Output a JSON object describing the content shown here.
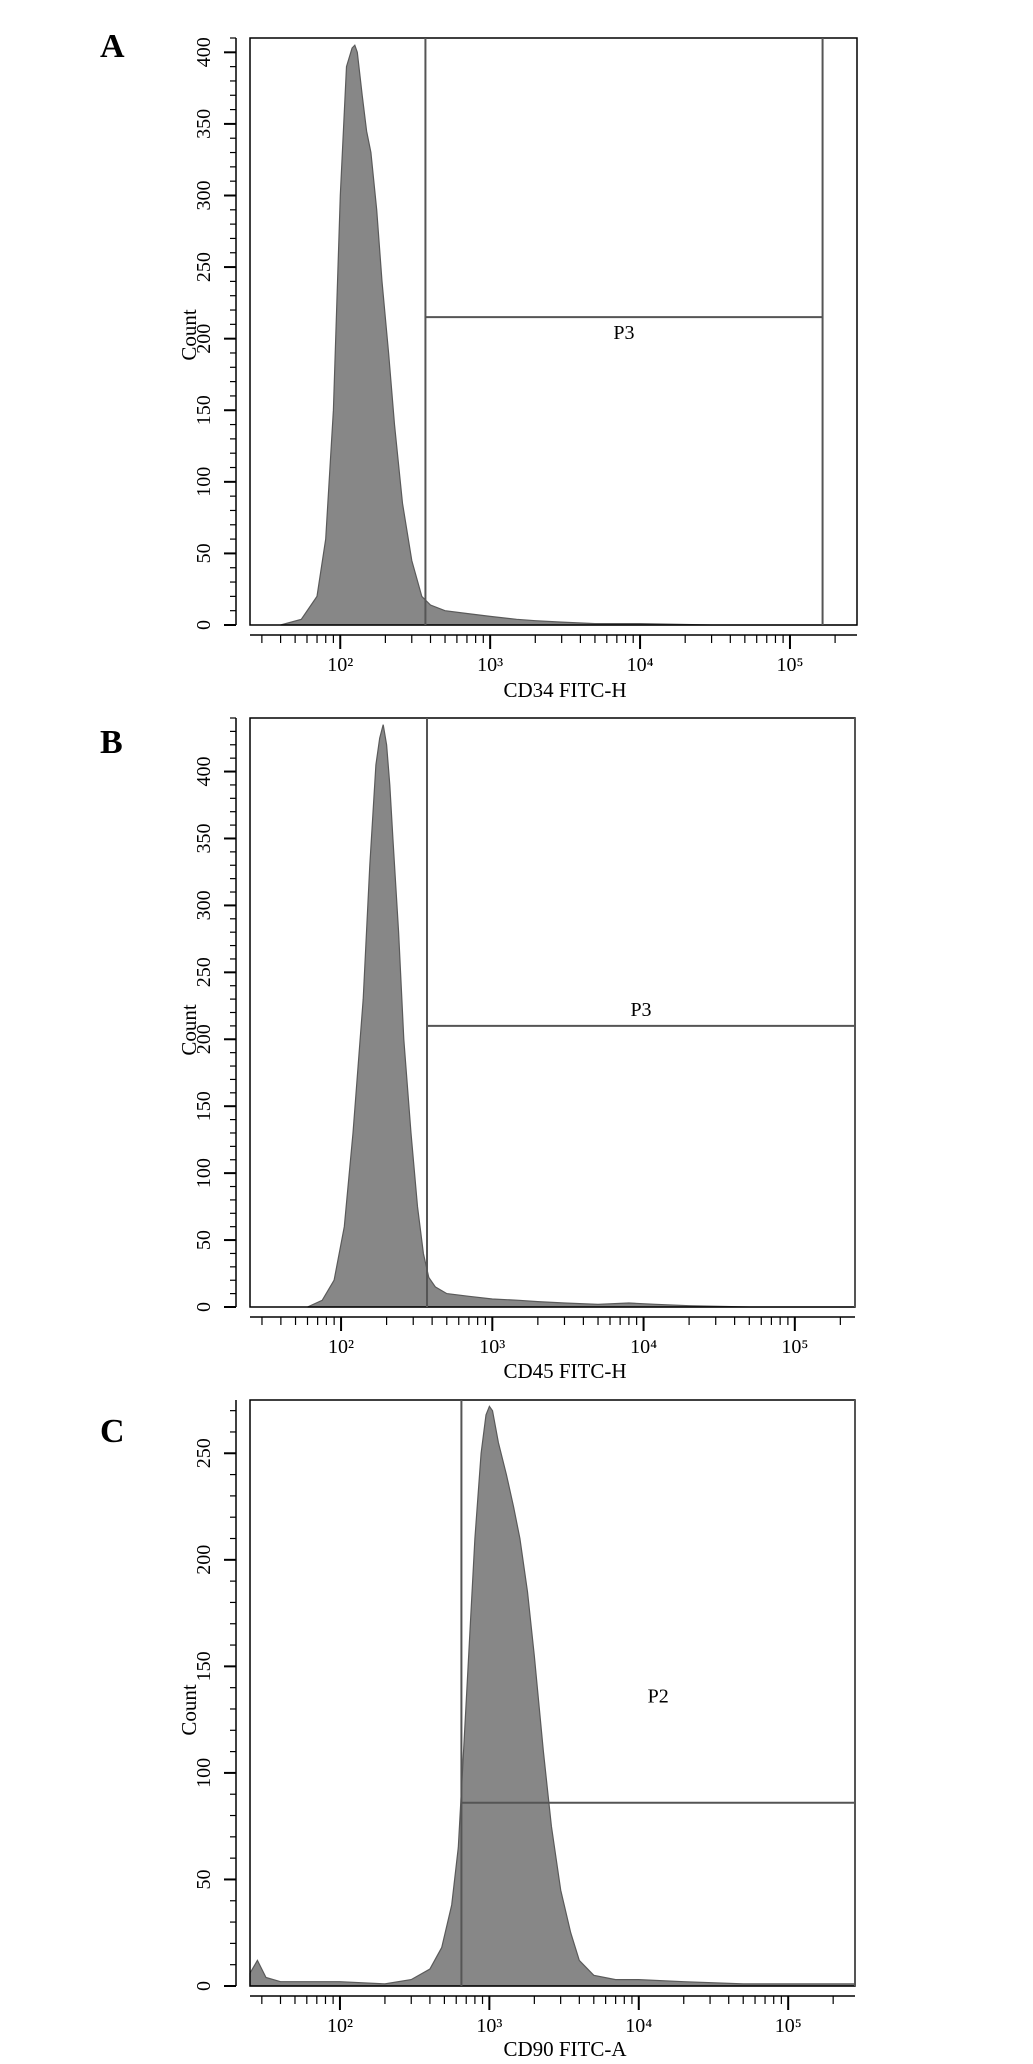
{
  "chart_data": [
    {
      "type": "area",
      "panel": "A",
      "xlabel": "CD34 FITC-H",
      "ylabel": "Count",
      "xscale": "log",
      "xlim": [
        25,
        280000
      ],
      "ylim": [
        0,
        410
      ],
      "yticks": [
        0,
        50,
        100,
        150,
        200,
        250,
        300,
        350,
        400
      ],
      "xtick_values": [
        100,
        1000,
        10000,
        100000
      ],
      "xtick_labels": [
        "10²",
        "10³",
        "10⁴",
        "10⁵"
      ],
      "series": [
        {
          "x": [
            40,
            55,
            70,
            80,
            90,
            100,
            110,
            120,
            125,
            130,
            140,
            150,
            160,
            175,
            190,
            210,
            230,
            260,
            300,
            350,
            400,
            500,
            700,
            1000,
            1500,
            2000,
            3000,
            5000,
            10000,
            30000,
            100000,
            200000,
            280000
          ],
          "y": [
            0,
            4,
            20,
            60,
            150,
            300,
            390,
            403,
            405,
            400,
            370,
            345,
            330,
            290,
            240,
            190,
            140,
            85,
            45,
            20,
            14,
            10,
            8,
            6,
            4,
            3,
            2,
            1,
            1,
            0,
            0,
            0,
            0
          ]
        }
      ],
      "gate": {
        "label": "P3",
        "x_min": 370,
        "x_max": 165000,
        "marker_y": 215
      }
    },
    {
      "type": "area",
      "panel": "B",
      "xlabel": "CD45 FITC-H",
      "ylabel": "Count",
      "xscale": "log",
      "xlim": [
        25,
        250000
      ],
      "ylim": [
        0,
        440
      ],
      "yticks": [
        0,
        50,
        100,
        150,
        200,
        250,
        300,
        350,
        400
      ],
      "xtick_values": [
        100,
        1000,
        10000,
        100000
      ],
      "xtick_labels": [
        "10²",
        "10³",
        "10⁴",
        "10⁵"
      ],
      "series": [
        {
          "x": [
            60,
            75,
            90,
            105,
            120,
            140,
            155,
            170,
            180,
            190,
            200,
            210,
            220,
            240,
            260,
            290,
            320,
            350,
            380,
            420,
            500,
            700,
            1000,
            1500,
            2000,
            3000,
            5000,
            8000,
            12000,
            20000,
            50000,
            100000,
            250000
          ],
          "y": [
            0,
            5,
            20,
            60,
            130,
            230,
            330,
            405,
            425,
            435,
            420,
            390,
            350,
            280,
            200,
            130,
            75,
            40,
            22,
            15,
            10,
            8,
            6,
            5,
            4,
            3,
            2,
            3,
            2,
            1,
            0,
            0,
            0
          ]
        }
      ],
      "gate": {
        "label": "P3",
        "x_min": 370,
        "x_max": 250000,
        "marker_y": 210
      }
    },
    {
      "type": "area",
      "panel": "C",
      "xlabel": "CD90 FITC-A",
      "ylabel": "Count",
      "xscale": "log",
      "xlim": [
        25,
        280000
      ],
      "ylim": [
        0,
        275
      ],
      "yticks": [
        0,
        50,
        100,
        150,
        200,
        250
      ],
      "xtick_values": [
        100,
        1000,
        10000,
        100000
      ],
      "xtick_labels": [
        "10²",
        "10³",
        "10⁴",
        "10⁵"
      ],
      "series": [
        {
          "x": [
            25,
            28,
            32,
            40,
            60,
            100,
            200,
            300,
            400,
            480,
            560,
            620,
            660,
            720,
            800,
            880,
            950,
            1000,
            1050,
            1150,
            1300,
            1450,
            1600,
            1800,
            2000,
            2300,
            2600,
            3000,
            3500,
            4000,
            5000,
            7000,
            10000,
            20000,
            50000,
            100000,
            200000,
            280000
          ],
          "y": [
            6,
            12,
            4,
            2,
            2,
            2,
            1,
            3,
            8,
            18,
            38,
            65,
            100,
            150,
            210,
            250,
            268,
            272,
            270,
            255,
            240,
            225,
            210,
            185,
            155,
            110,
            75,
            45,
            25,
            12,
            5,
            3,
            3,
            2,
            1,
            1,
            1,
            1
          ]
        }
      ],
      "gate": {
        "label": "P2",
        "x_min": 650,
        "x_max": 280000,
        "marker_y": 86
      }
    }
  ],
  "style": {
    "fill": "#878787",
    "stroke": "#5a5a5a",
    "gate_line": "#555555"
  }
}
